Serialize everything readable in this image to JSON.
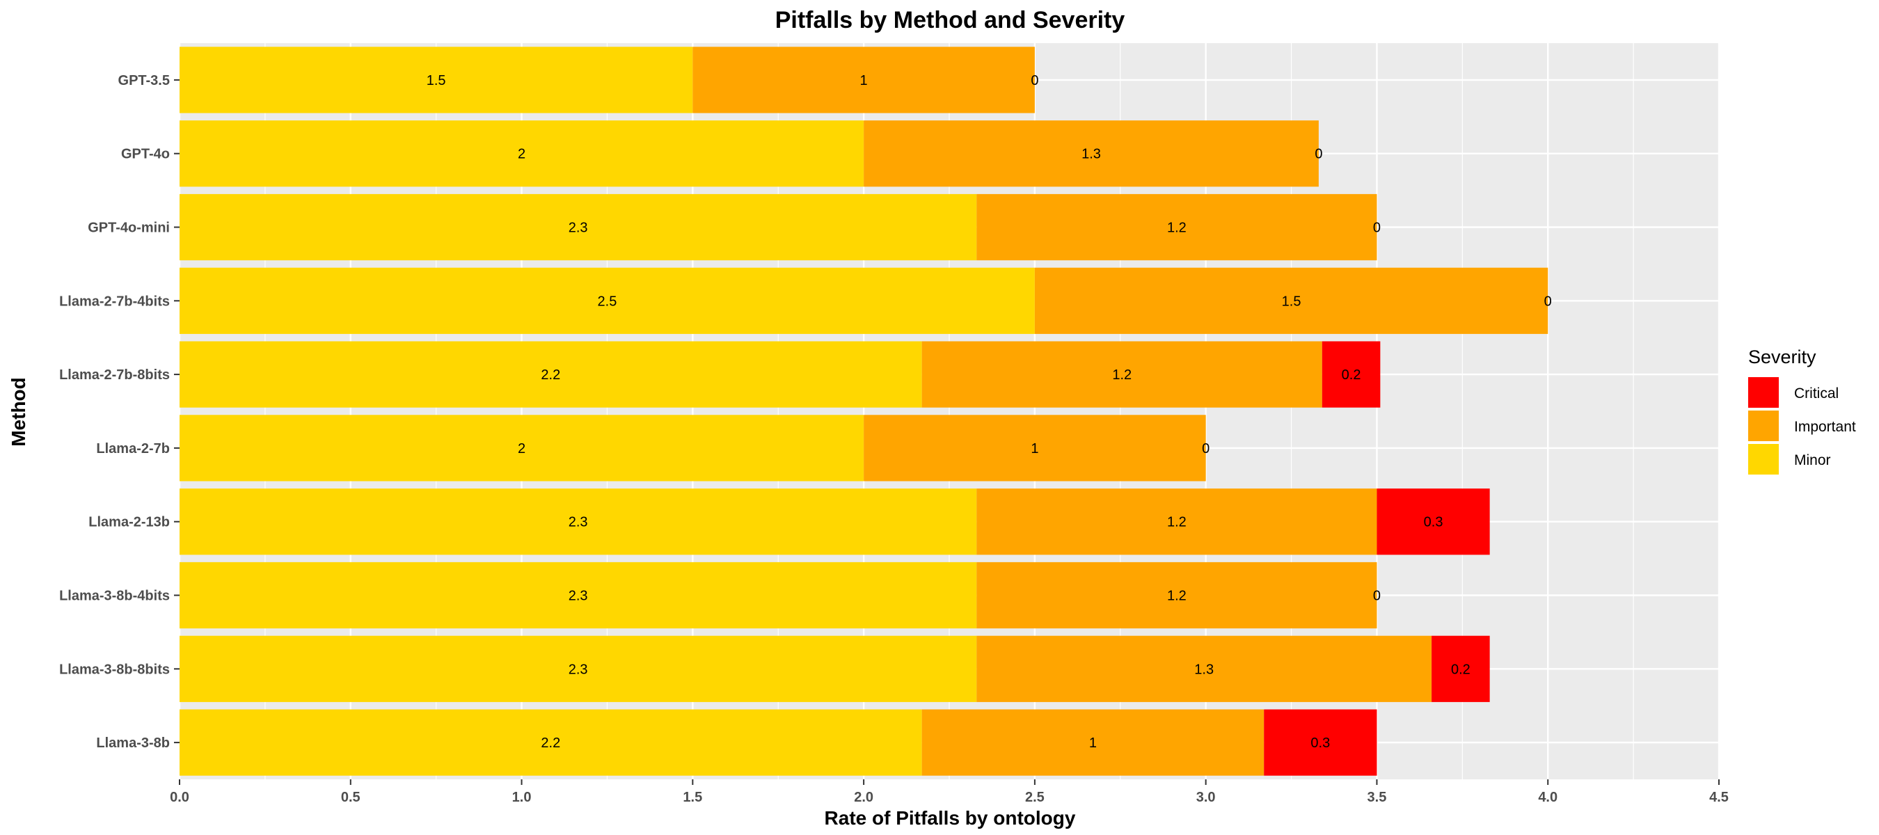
{
  "chart_data": {
    "type": "bar",
    "orientation": "horizontal",
    "stacked": true,
    "title": "Pitfalls by Method and Severity",
    "xlabel": "Rate of Pitfalls by ontology",
    "ylabel": "Method",
    "xlim": [
      0,
      4.5
    ],
    "xticks": [
      "0.0",
      "0.5",
      "1.0",
      "1.5",
      "2.0",
      "2.5",
      "3.0",
      "3.5",
      "4.0",
      "4.5"
    ],
    "grid": true,
    "legend_title": "Severity",
    "legend_position": "right",
    "categories": [
      "GPT-3.5",
      "GPT-4o",
      "GPT-4o-mini",
      "Llama-2-7b-4bits",
      "Llama-2-7b-8bits",
      "Llama-2-7b",
      "Llama-2-13b",
      "Llama-3-8b-4bits",
      "Llama-3-8b-8bits",
      "Llama-3-8b"
    ],
    "series": [
      {
        "name": "Minor",
        "color": "#FFD700",
        "values": [
          1.5,
          2.0,
          2.33,
          2.5,
          2.17,
          2.0,
          2.33,
          2.33,
          2.33,
          2.17
        ],
        "labels": [
          "1.5",
          "2",
          "2.3",
          "2.5",
          "2.2",
          "2",
          "2.3",
          "2.3",
          "2.3",
          "2.2"
        ]
      },
      {
        "name": "Important",
        "color": "#FFA500",
        "values": [
          1.0,
          1.33,
          1.17,
          1.5,
          1.17,
          1.0,
          1.17,
          1.17,
          1.33,
          1.0
        ],
        "labels": [
          "1",
          "1.3",
          "1.2",
          "1.5",
          "1.2",
          "1",
          "1.2",
          "1.2",
          "1.3",
          "1"
        ]
      },
      {
        "name": "Critical",
        "color": "#FF0000",
        "values": [
          0,
          0,
          0,
          0,
          0.17,
          0,
          0.33,
          0,
          0.17,
          0.33
        ],
        "labels": [
          "0",
          "0",
          "0",
          "0",
          "0.2",
          "0",
          "0.3",
          "0",
          "0.2",
          "0.3"
        ]
      }
    ],
    "legend_order": [
      "Critical",
      "Important",
      "Minor"
    ],
    "panel_color": "#EBEBEB",
    "grid_color": "#FFFFFF"
  }
}
